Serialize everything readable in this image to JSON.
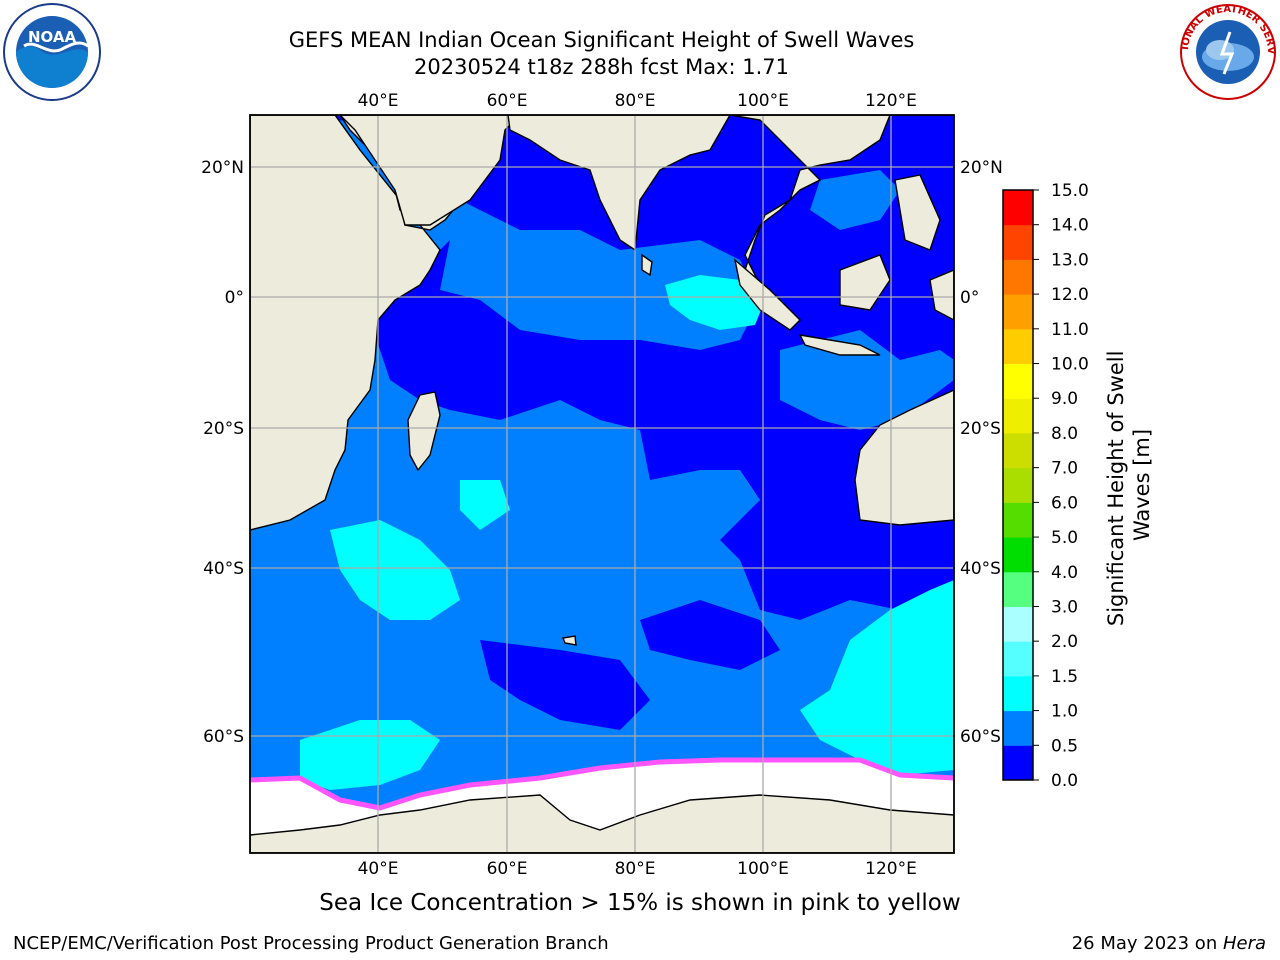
{
  "title": {
    "line1": "GEFS MEAN Indian Ocean Significant Height of Swell Waves",
    "line2": "20230524 t18z 288h fcst   Max: 1.71"
  },
  "logos": {
    "left": {
      "name": "NOAA",
      "ring_text": "NATIONAL OCEANIC AND ATMOSPHERIC ADMINISTRATION · U.S. DEPARTMENT OF COMMERCE"
    },
    "right": {
      "name": "NATIONAL WEATHER SERVICE"
    }
  },
  "map": {
    "lon_labels": [
      "40°E",
      "60°E",
      "80°E",
      "100°E",
      "120°E"
    ],
    "lat_labels": [
      "20°N",
      "0°",
      "20°S",
      "40°S",
      "60°S"
    ],
    "colors": {
      "land": "#ecebdc",
      "ocean_0": "#0000ff",
      "ocean_05": "#0080ff",
      "ocean_1": "#00ffff",
      "ice_pink": "#ff55ff",
      "ice_white": "#ffffff",
      "grid": "#aaaaaa"
    }
  },
  "colorbar": {
    "label": "Significant Height of Swell Waves [m]",
    "ticks": [
      "0.0",
      "0.5",
      "1.0",
      "1.5",
      "2.0",
      "3.0",
      "4.0",
      "5.0",
      "6.0",
      "7.0",
      "8.0",
      "9.0",
      "10.0",
      "11.0",
      "12.0",
      "13.0",
      "14.0",
      "15.0"
    ],
    "colors": [
      "#0000ff",
      "#0080ff",
      "#00ffff",
      "#55ffff",
      "#aaffff",
      "#55ff80",
      "#00dd00",
      "#55dd00",
      "#aadd00",
      "#ccdd00",
      "#eeee00",
      "#ffff00",
      "#ffcc00",
      "#ffa000",
      "#ff7700",
      "#ff4400",
      "#ff0000"
    ]
  },
  "footer": {
    "note": "Sea Ice Concentration > 15% is shown in pink to yellow",
    "left": "NCEP/EMC/Verification Post Processing Product Generation Branch",
    "right_date": "26 May 2023 on ",
    "right_machine": "Hera"
  }
}
